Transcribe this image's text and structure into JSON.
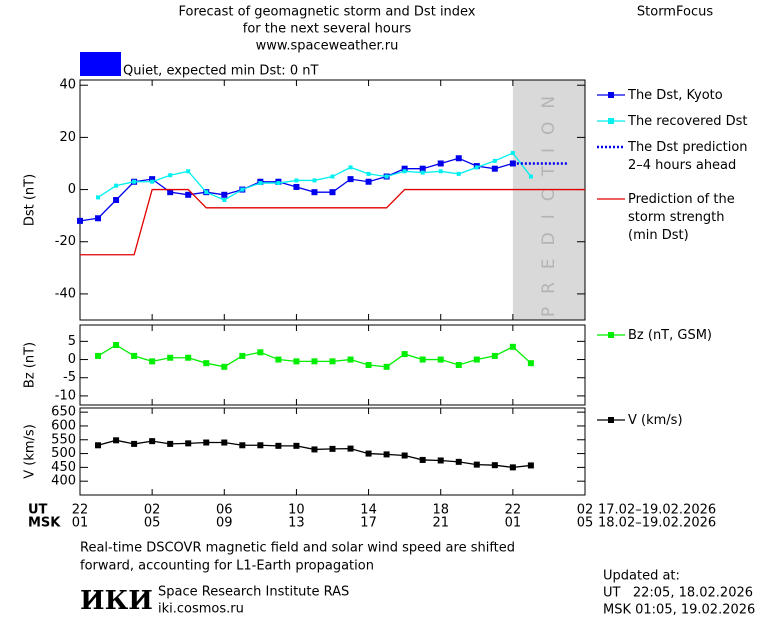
{
  "header": {
    "title_lines": [
      "Forecast of geomagnetic storm and Dst index",
      "for the next several hours",
      "www.spaceweather.ru"
    ],
    "brand": "StormFocus",
    "status": {
      "text": "Quiet, expected min Dst: 0 nT",
      "color": "#0000ff"
    }
  },
  "time_axis": {
    "xlim": [
      0,
      28
    ],
    "ut_label": "UT",
    "msk_label": "MSK",
    "ut_ticks": [
      {
        "value": 0,
        "label": "22"
      },
      {
        "value": 4,
        "label": "02"
      },
      {
        "value": 8,
        "label": "06"
      },
      {
        "value": 12,
        "label": "10"
      },
      {
        "value": 16,
        "label": "14"
      },
      {
        "value": 20,
        "label": "18"
      },
      {
        "value": 24,
        "label": "22"
      },
      {
        "value": 28,
        "label": "02"
      }
    ],
    "msk_ticks": [
      {
        "value": 0,
        "label": "01"
      },
      {
        "value": 4,
        "label": "05"
      },
      {
        "value": 8,
        "label": "09"
      },
      {
        "value": 12,
        "label": "13"
      },
      {
        "value": 16,
        "label": "17"
      },
      {
        "value": 20,
        "label": "21"
      },
      {
        "value": 24,
        "label": "01"
      },
      {
        "value": 28,
        "label": "05"
      }
    ],
    "ut_dates": "17.02–19.02.2026",
    "msk_dates": "18.02–19.02.2026"
  },
  "chart_data": [
    {
      "type": "line",
      "y_label": "Dst (nT)",
      "ylim": [
        -50,
        42
      ],
      "yticks": [
        -40,
        -20,
        0,
        20,
        40
      ],
      "prediction_xlim": [
        24,
        28
      ],
      "prediction_label": "PREDICTION",
      "prediction_color": "#d9d9d9",
      "series": [
        {
          "name": "The Dst, Kyoto",
          "color": "#0000ee",
          "marker": "square",
          "x": [
            0,
            1,
            2,
            3,
            4,
            5,
            6,
            7,
            8,
            9,
            10,
            11,
            12,
            13,
            14,
            15,
            16,
            17,
            18,
            19,
            20,
            21,
            22,
            23,
            24
          ],
          "values": [
            -12,
            -11,
            -4,
            3,
            4,
            -1,
            -2,
            -1,
            -2,
            0,
            3,
            3,
            1,
            -1,
            -1,
            4,
            3,
            5,
            8,
            8,
            10,
            12,
            9,
            8,
            10
          ]
        },
        {
          "name": "The recovered Dst",
          "color": "#00f0f0",
          "marker": "square",
          "x": [
            1,
            2,
            3,
            4,
            5,
            6,
            7,
            8,
            9,
            10,
            11,
            12,
            13,
            14,
            15,
            16,
            17,
            18,
            19,
            20,
            21,
            22,
            23,
            24,
            25
          ],
          "values": [
            -3,
            1.5,
            3,
            3,
            5.5,
            7,
            -1,
            -4,
            0,
            2.5,
            2.5,
            3.5,
            3.5,
            5,
            8.5,
            6,
            5,
            7,
            6.5,
            7,
            6,
            8.5,
            11,
            14,
            5
          ]
        },
        {
          "name": "The Dst prediction\n2–4 hours ahead",
          "color": "#0000ee",
          "marker": "none",
          "dash": true,
          "x": [
            24,
            27
          ],
          "values": [
            10,
            10
          ]
        },
        {
          "name": "Prediction of the\nstorm strength\n(min Dst)",
          "color": "#e00000",
          "marker": "none",
          "x": [
            0,
            3,
            4,
            6,
            7,
            17,
            18,
            28
          ],
          "values": [
            -25,
            -25,
            0,
            0,
            -7,
            -7,
            0,
            0
          ]
        }
      ]
    },
    {
      "type": "line",
      "y_label": "Bz (nT)",
      "ylim": [
        -12.5,
        9.5
      ],
      "yticks": [
        -10,
        -5,
        0,
        5
      ],
      "series": [
        {
          "name": "Bz (nT, GSM)",
          "color": "#00ee00",
          "marker": "square",
          "x": [
            1,
            2,
            3,
            4,
            5,
            6,
            7,
            8,
            9,
            10,
            11,
            12,
            13,
            14,
            15,
            16,
            17,
            18,
            19,
            20,
            21,
            22,
            23,
            24,
            25
          ],
          "values": [
            1,
            4,
            1,
            -0.5,
            0.5,
            0.5,
            -1,
            -2,
            1,
            2,
            0,
            -0.5,
            -0.5,
            -0.5,
            0,
            -1.5,
            -2,
            1.5,
            0,
            0,
            -1.5,
            0,
            1,
            3.5,
            -1
          ]
        }
      ]
    },
    {
      "type": "line",
      "y_label": "V (km/s)",
      "ylim": [
        350,
        665
      ],
      "yticks": [
        400,
        450,
        500,
        550,
        600,
        650
      ],
      "series": [
        {
          "name": "V (km/s)",
          "color": "#000000",
          "marker": "square",
          "x": [
            1,
            2,
            3,
            4,
            5,
            6,
            7,
            8,
            9,
            10,
            11,
            12,
            13,
            14,
            15,
            16,
            17,
            18,
            19,
            20,
            21,
            22,
            23,
            24,
            25
          ],
          "values": [
            530,
            548,
            535,
            545,
            535,
            537,
            540,
            540,
            530,
            530,
            528,
            528,
            515,
            517,
            518,
            500,
            497,
            493,
            477,
            475,
            470,
            460,
            458,
            450,
            457
          ]
        }
      ]
    }
  ],
  "footer": {
    "note_lines": [
      "Real-time DSCOVR magnetic field and solar wind speed are shifted",
      "forward, accounting for L1-Earth propagation"
    ],
    "logo": "ИКИ",
    "institute": "Space Research Institute RAS",
    "site": "iki.cosmos.ru",
    "updated_lines": [
      "Updated at:",
      "UT   22:05, 18.02.2026",
      "MSK 01:05, 19.02.2026"
    ]
  }
}
